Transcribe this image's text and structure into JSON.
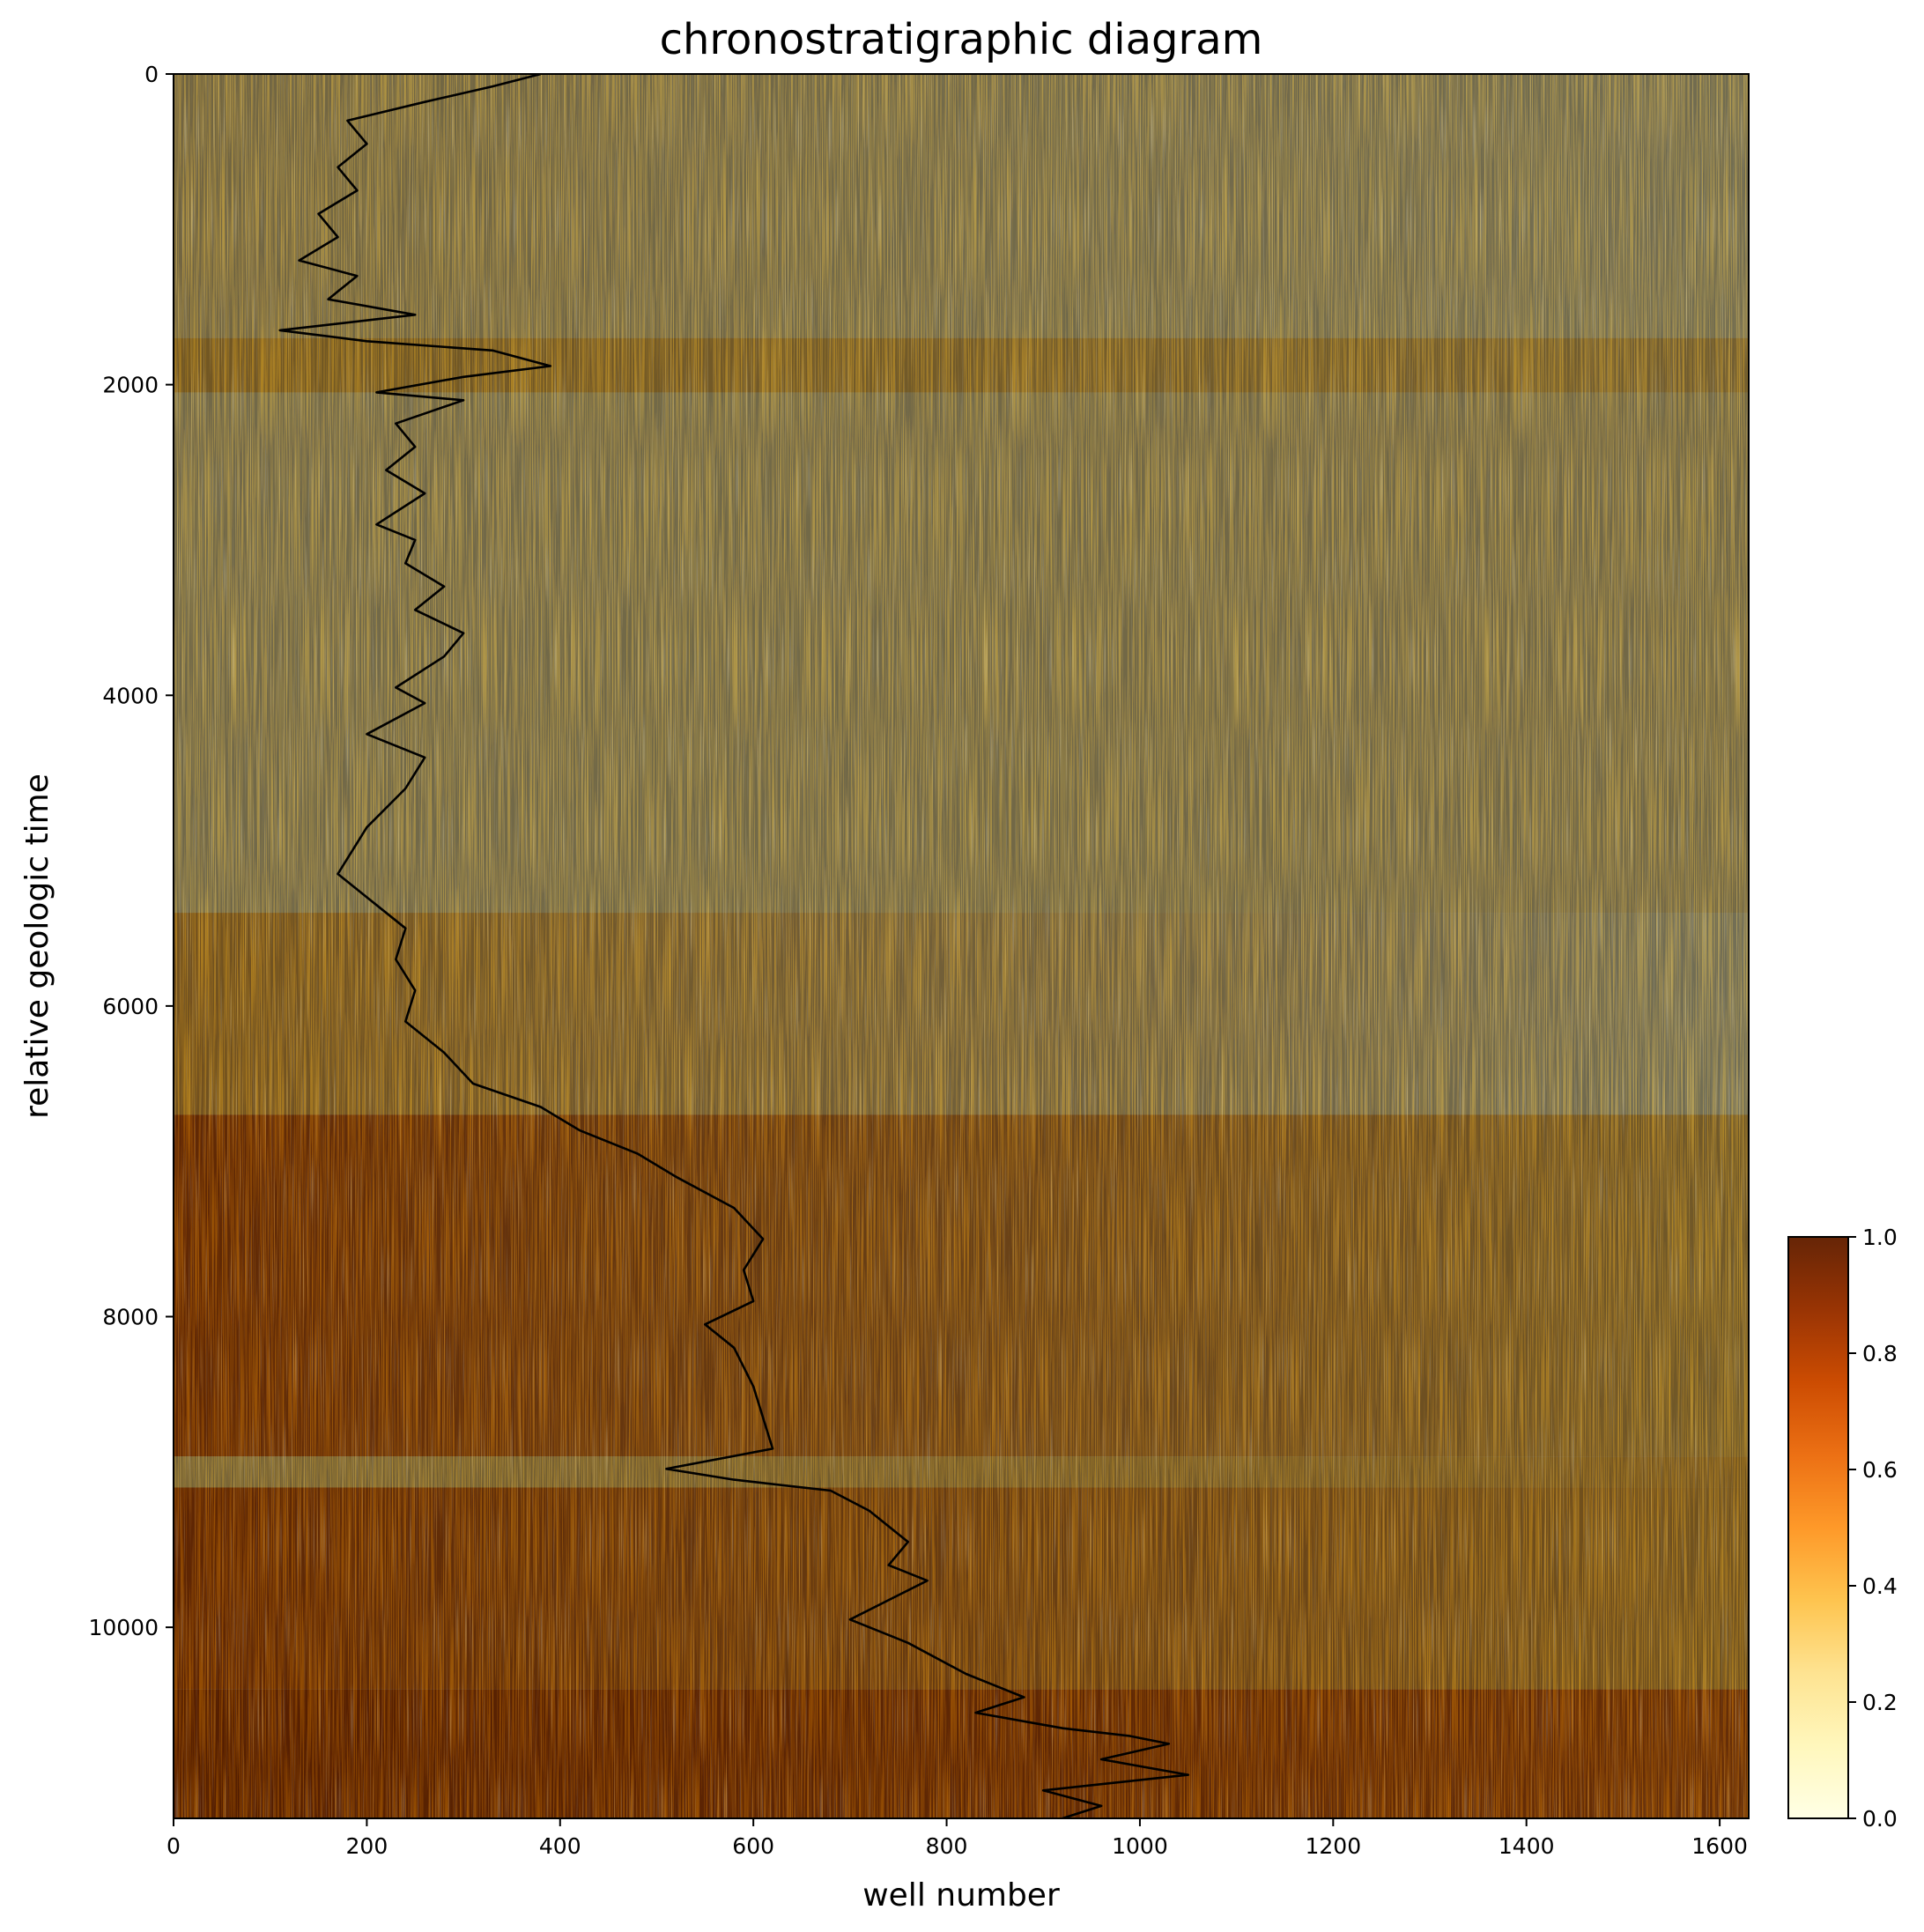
{
  "chart_data": {
    "type": "heatmap",
    "title": "chronostratigraphic diagram",
    "xlabel": "well number",
    "ylabel": "relative geologic time",
    "xlim": [
      0,
      1630
    ],
    "ylim": [
      11230,
      0
    ],
    "x_ticks": [
      0,
      200,
      400,
      600,
      800,
      1000,
      1200,
      1400,
      1600
    ],
    "y_ticks": [
      0,
      2000,
      4000,
      6000,
      8000,
      10000
    ],
    "colorbar": {
      "colormap": "YlOrBr",
      "range": [
        0.0,
        1.0
      ],
      "ticks": [
        0.0,
        0.2,
        0.4,
        0.6,
        0.8,
        1.0
      ],
      "colors": [
        "#ffffe5",
        "#fff7bc",
        "#fee391",
        "#fec44f",
        "#fe9929",
        "#ec7014",
        "#cc4c02",
        "#993404",
        "#662506"
      ]
    },
    "heatmap_summary": [
      {
        "time": [
          0,
          1700
        ],
        "value_left": 0.25,
        "value_right": 0.15
      },
      {
        "time": [
          1700,
          2050
        ],
        "value_left": 0.38,
        "value_right": 0.32
      },
      {
        "time": [
          2050,
          5400
        ],
        "value_left": 0.2,
        "value_right": 0.22
      },
      {
        "time": [
          5400,
          6700
        ],
        "value_left": 0.42,
        "value_right": 0.12
      },
      {
        "time": [
          6700,
          8900
        ],
        "value_left": 0.7,
        "value_right": 0.35
      },
      {
        "time": [
          8900,
          9100
        ],
        "value_left": 0.3,
        "value_right": 0.4
      },
      {
        "time": [
          9100,
          10400
        ],
        "value_left": 0.72,
        "value_right": 0.4
      },
      {
        "time": [
          10400,
          11230
        ],
        "value_left": 0.78,
        "value_right": 0.65
      }
    ],
    "series": [
      {
        "type": "line",
        "color": "#000000",
        "points": [
          [
            380,
            0
          ],
          [
            330,
            80
          ],
          [
            260,
            180
          ],
          [
            180,
            300
          ],
          [
            200,
            450
          ],
          [
            170,
            600
          ],
          [
            190,
            750
          ],
          [
            150,
            900
          ],
          [
            170,
            1050
          ],
          [
            130,
            1200
          ],
          [
            190,
            1300
          ],
          [
            160,
            1450
          ],
          [
            250,
            1550
          ],
          [
            110,
            1650
          ],
          [
            200,
            1720
          ],
          [
            330,
            1780
          ],
          [
            390,
            1880
          ],
          [
            300,
            1950
          ],
          [
            210,
            2050
          ],
          [
            300,
            2100
          ],
          [
            230,
            2250
          ],
          [
            250,
            2400
          ],
          [
            220,
            2550
          ],
          [
            260,
            2700
          ],
          [
            210,
            2900
          ],
          [
            250,
            3000
          ],
          [
            240,
            3150
          ],
          [
            280,
            3300
          ],
          [
            250,
            3450
          ],
          [
            300,
            3600
          ],
          [
            280,
            3750
          ],
          [
            230,
            3950
          ],
          [
            260,
            4050
          ],
          [
            200,
            4250
          ],
          [
            260,
            4400
          ],
          [
            240,
            4600
          ],
          [
            200,
            4850
          ],
          [
            180,
            5050
          ],
          [
            170,
            5150
          ],
          [
            210,
            5350
          ],
          [
            240,
            5500
          ],
          [
            230,
            5700
          ],
          [
            250,
            5900
          ],
          [
            240,
            6100
          ],
          [
            280,
            6300
          ],
          [
            310,
            6500
          ],
          [
            380,
            6650
          ],
          [
            420,
            6800
          ],
          [
            480,
            6950
          ],
          [
            520,
            7100
          ],
          [
            580,
            7300
          ],
          [
            610,
            7500
          ],
          [
            590,
            7700
          ],
          [
            600,
            7900
          ],
          [
            550,
            8050
          ],
          [
            580,
            8200
          ],
          [
            600,
            8450
          ],
          [
            610,
            8650
          ],
          [
            620,
            8850
          ],
          [
            510,
            8980
          ],
          [
            580,
            9050
          ],
          [
            680,
            9120
          ],
          [
            720,
            9250
          ],
          [
            760,
            9450
          ],
          [
            740,
            9600
          ],
          [
            780,
            9700
          ],
          [
            700,
            9950
          ],
          [
            760,
            10100
          ],
          [
            820,
            10300
          ],
          [
            880,
            10450
          ],
          [
            830,
            10550
          ],
          [
            920,
            10650
          ],
          [
            990,
            10700
          ],
          [
            1030,
            10750
          ],
          [
            960,
            10850
          ],
          [
            1050,
            10950
          ],
          [
            900,
            11050
          ],
          [
            960,
            11150
          ],
          [
            920,
            11230
          ]
        ]
      }
    ]
  }
}
